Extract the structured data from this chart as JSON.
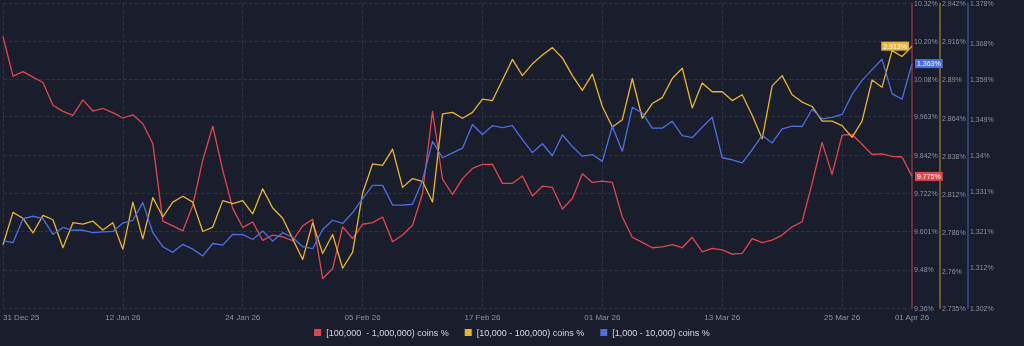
{
  "chart_data": {
    "type": "line",
    "x": [
      "2025-12-31",
      "2026-01-01",
      "2026-01-02",
      "2026-01-03",
      "2026-01-04",
      "2026-01-05",
      "2026-01-06",
      "2026-01-07",
      "2026-01-08",
      "2026-01-09",
      "2026-01-10",
      "2026-01-11",
      "2026-01-12",
      "2026-01-13",
      "2026-01-14",
      "2026-01-15",
      "2026-01-16",
      "2026-01-17",
      "2026-01-18",
      "2026-01-19",
      "2026-01-20",
      "2026-01-21",
      "2026-01-22",
      "2026-01-23",
      "2026-01-24",
      "2026-01-25",
      "2026-01-26",
      "2026-01-27",
      "2026-01-28",
      "2026-01-29",
      "2026-01-30",
      "2026-01-31",
      "2026-02-01",
      "2026-02-02",
      "2026-02-03",
      "2026-02-04",
      "2026-02-05",
      "2026-02-06",
      "2026-02-07",
      "2026-02-08",
      "2026-02-09",
      "2026-02-10",
      "2026-02-11",
      "2026-02-12",
      "2026-02-13",
      "2026-02-14",
      "2026-02-15",
      "2026-02-16",
      "2026-02-17",
      "2026-02-18",
      "2026-02-19",
      "2026-02-20",
      "2026-02-21",
      "2026-02-22",
      "2026-02-23",
      "2026-02-24",
      "2026-02-25",
      "2026-02-26",
      "2026-02-27",
      "2026-02-28",
      "2026-03-01",
      "2026-03-02",
      "2026-03-03",
      "2026-03-04",
      "2026-03-05",
      "2026-03-06",
      "2026-03-07",
      "2026-03-08",
      "2026-03-09",
      "2026-03-10",
      "2026-03-11",
      "2026-03-12",
      "2026-03-13",
      "2026-03-14",
      "2026-03-15",
      "2026-03-16",
      "2026-03-17",
      "2026-03-18",
      "2026-03-19",
      "2026-03-20",
      "2026-03-21",
      "2026-03-22",
      "2026-03-23",
      "2026-03-24",
      "2026-03-25",
      "2026-03-26",
      "2026-03-27",
      "2026-03-28",
      "2026-03-29",
      "2026-03-30",
      "2026-03-31",
      "2026-04-01"
    ],
    "xlim": [
      "2025-12-31",
      "2026-04-01"
    ],
    "xticks": [
      {
        "value": "2025-12-31",
        "label": "31 Dec 25"
      },
      {
        "value": "2026-01-12",
        "label": "12 Jan 26"
      },
      {
        "value": "2026-01-24",
        "label": "24 Jan 26"
      },
      {
        "value": "2026-02-05",
        "label": "05 Feb 26"
      },
      {
        "value": "2026-02-17",
        "label": "17 Feb 26"
      },
      {
        "value": "2026-03-01",
        "label": "01 Mar 26"
      },
      {
        "value": "2026-03-13",
        "label": "13 Mar 26"
      },
      {
        "value": "2026-03-25",
        "label": "25 Mar 26"
      },
      {
        "value": "2026-04-01",
        "label": "01 Apr 26"
      }
    ],
    "ylim": [
      9.36,
      10.32
    ],
    "yticks": [
      {
        "value": 9.36,
        "label": "9.36%"
      },
      {
        "value": 9.48,
        "label": "9.48%"
      },
      {
        "value": 9.601,
        "label": "9.601%"
      },
      {
        "value": 9.722,
        "label": "9.722%"
      },
      {
        "value": 9.842,
        "label": "9.842%"
      },
      {
        "value": 9.963,
        "label": "9.963%"
      },
      {
        "value": 10.08,
        "label": "10.08%"
      },
      {
        "value": 10.2,
        "label": "10.20%"
      },
      {
        "value": 10.32,
        "label": "10.32%"
      }
    ],
    "y2lim": [
      2.735,
      2.942
    ],
    "y2ticks": [
      {
        "value": 2.735,
        "label": "2.735%"
      },
      {
        "value": 2.76,
        "label": "2.76%"
      },
      {
        "value": 2.786,
        "label": "2.786%"
      },
      {
        "value": 2.812,
        "label": "2.812%"
      },
      {
        "value": 2.838,
        "label": "2.838%"
      },
      {
        "value": 2.864,
        "label": "2.864%"
      },
      {
        "value": 2.89,
        "label": "2.89%"
      },
      {
        "value": 2.916,
        "label": "2.916%"
      },
      {
        "value": 2.942,
        "label": "2.942%"
      }
    ],
    "y3lim": [
      1.302,
      1.378
    ],
    "y3ticks": [
      {
        "value": 1.302,
        "label": "1.302%"
      },
      {
        "value": 1.312,
        "label": "1.312%"
      },
      {
        "value": 1.321,
        "label": "1.321%"
      },
      {
        "value": 1.331,
        "label": "1.331%"
      },
      {
        "value": 1.34,
        "label": "1.34%"
      },
      {
        "value": 1.349,
        "label": "1.349%"
      },
      {
        "value": 1.359,
        "label": "1.359%"
      },
      {
        "value": 1.368,
        "label": "1.368%"
      },
      {
        "value": 1.378,
        "label": "1.378%"
      }
    ],
    "grid": true,
    "legend": "bottom",
    "marker": "none",
    "line_style": "solid",
    "series": [
      {
        "name": "[100,000  - 1,000,000) coins %",
        "color": "#e0474c",
        "axis": "y",
        "values": [
          10.216,
          10.091,
          10.105,
          10.088,
          10.071,
          9.999,
          9.98,
          9.967,
          10.016,
          9.981,
          9.989,
          9.976,
          9.959,
          9.969,
          9.941,
          9.878,
          9.634,
          9.619,
          9.603,
          9.684,
          9.826,
          9.933,
          9.794,
          9.674,
          9.614,
          9.631,
          9.573,
          9.59,
          9.584,
          9.572,
          9.619,
          9.64,
          9.453,
          9.484,
          9.616,
          9.579,
          9.624,
          9.629,
          9.647,
          9.569,
          9.59,
          9.621,
          9.721,
          9.98,
          9.766,
          9.718,
          9.768,
          9.8,
          9.813,
          9.813,
          9.753,
          9.753,
          9.776,
          9.713,
          9.744,
          9.74,
          9.672,
          9.705,
          9.783,
          9.756,
          9.76,
          9.756,
          9.647,
          9.583,
          9.567,
          9.55,
          9.553,
          9.56,
          9.55,
          9.583,
          9.537,
          9.548,
          9.543,
          9.53,
          9.532,
          9.579,
          9.566,
          9.574,
          9.59,
          9.616,
          9.632,
          9.753,
          9.882,
          9.781,
          9.905,
          9.907,
          9.876,
          9.844,
          9.846,
          9.838,
          9.836,
          9.775
        ],
        "value_labels": [
          null,
          null,
          null,
          null,
          null,
          null,
          null,
          null,
          null,
          null,
          null,
          null,
          null,
          null,
          null,
          null,
          null,
          null,
          null,
          null,
          null,
          null,
          null,
          null,
          null,
          null,
          null,
          null,
          null,
          null,
          null,
          null,
          null,
          null,
          null,
          null,
          null,
          null,
          null,
          null,
          null,
          null,
          null,
          null,
          null,
          null,
          null,
          null,
          null,
          null,
          null,
          null,
          null,
          null,
          null,
          null,
          null,
          null,
          null,
          null,
          null,
          null,
          null,
          null,
          null,
          null,
          null,
          null,
          null,
          null,
          null,
          null,
          null,
          null,
          null,
          null,
          null,
          null,
          null,
          null,
          null,
          null,
          null,
          null,
          null,
          null,
          null,
          null,
          null,
          null,
          null,
          "9.775%"
        ]
      },
      {
        "name": "[10,000 - 100,000) coins %",
        "color": "#e9b52f",
        "axis": "y2",
        "values": [
          2.778,
          2.8,
          2.796,
          2.786,
          2.798,
          2.795,
          2.776,
          2.793,
          2.792,
          2.794,
          2.788,
          2.793,
          2.775,
          2.807,
          2.782,
          2.81,
          2.797,
          2.807,
          2.811,
          2.807,
          2.787,
          2.79,
          2.808,
          2.806,
          2.808,
          2.799,
          2.816,
          2.803,
          2.796,
          2.782,
          2.768,
          2.793,
          2.772,
          2.785,
          2.762,
          2.773,
          2.813,
          2.833,
          2.832,
          2.843,
          2.817,
          2.823,
          2.821,
          2.807,
          2.867,
          2.868,
          2.864,
          2.868,
          2.877,
          2.876,
          2.89,
          2.904,
          2.893,
          2.901,
          2.907,
          2.912,
          2.905,
          2.893,
          2.883,
          2.894,
          2.872,
          2.858,
          2.863,
          2.891,
          2.864,
          2.874,
          2.878,
          2.891,
          2.898,
          2.871,
          2.888,
          2.882,
          2.882,
          2.876,
          2.88,
          2.866,
          2.85,
          2.886,
          2.893,
          2.88,
          2.875,
          2.872,
          2.862,
          2.862,
          2.859,
          2.851,
          2.862,
          2.89,
          2.885,
          2.91,
          2.906,
          2.913
        ],
        "value_labels": [
          null,
          null,
          null,
          null,
          null,
          null,
          null,
          null,
          null,
          null,
          null,
          null,
          null,
          null,
          null,
          null,
          null,
          null,
          null,
          null,
          null,
          null,
          null,
          null,
          null,
          null,
          null,
          null,
          null,
          null,
          null,
          null,
          null,
          null,
          null,
          null,
          null,
          null,
          null,
          null,
          null,
          null,
          null,
          null,
          null,
          null,
          null,
          null,
          null,
          null,
          null,
          null,
          null,
          null,
          null,
          null,
          null,
          null,
          null,
          null,
          null,
          null,
          null,
          null,
          null,
          null,
          null,
          null,
          null,
          null,
          null,
          null,
          null,
          null,
          null,
          null,
          null,
          null,
          null,
          null,
          null,
          null,
          null,
          null,
          null,
          null,
          null,
          null,
          null,
          null,
          null,
          "2.913%"
        ]
      },
      {
        "name": "[1,000 - 10,000) coins %",
        "color": "#4b6fe2",
        "axis": "y3",
        "values": [
          1.3188,
          1.3183,
          1.3243,
          1.3249,
          1.3243,
          1.3204,
          1.3221,
          1.3214,
          1.3214,
          1.3208,
          1.321,
          1.3211,
          1.3232,
          1.3239,
          1.3283,
          1.3208,
          1.3173,
          1.3159,
          1.3179,
          1.3167,
          1.315,
          1.3181,
          1.3177,
          1.3204,
          1.3203,
          1.3191,
          1.3212,
          1.3187,
          1.3208,
          1.3196,
          1.3173,
          1.3168,
          1.3216,
          1.3239,
          1.3231,
          1.3258,
          1.3293,
          1.3326,
          1.3326,
          1.3277,
          1.3277,
          1.3279,
          1.3339,
          1.3436,
          1.3395,
          1.3407,
          1.3419,
          1.3478,
          1.3453,
          1.3475,
          1.347,
          1.3475,
          1.344,
          1.3408,
          1.343,
          1.34,
          1.3452,
          1.3423,
          1.3399,
          1.3403,
          1.3386,
          1.3473,
          1.3411,
          1.3521,
          1.3507,
          1.3469,
          1.3469,
          1.3486,
          1.345,
          1.3445,
          1.3471,
          1.3496,
          1.3395,
          1.339,
          1.3382,
          1.3415,
          1.3451,
          1.3432,
          1.3467,
          1.3474,
          1.3473,
          1.3516,
          1.3492,
          1.3496,
          1.3503,
          1.3553,
          1.3588,
          1.3615,
          1.3641,
          1.3555,
          1.3541,
          1.363
        ],
        "value_labels": [
          null,
          null,
          null,
          null,
          null,
          null,
          null,
          null,
          null,
          null,
          null,
          null,
          null,
          null,
          null,
          null,
          null,
          null,
          null,
          null,
          null,
          null,
          null,
          null,
          null,
          null,
          null,
          null,
          null,
          null,
          null,
          null,
          null,
          null,
          null,
          null,
          null,
          null,
          null,
          null,
          null,
          null,
          null,
          null,
          null,
          null,
          null,
          null,
          null,
          null,
          null,
          null,
          null,
          null,
          null,
          null,
          null,
          null,
          null,
          null,
          null,
          null,
          null,
          null,
          null,
          null,
          null,
          null,
          null,
          null,
          null,
          null,
          null,
          null,
          null,
          null,
          null,
          null,
          null,
          null,
          null,
          null,
          null,
          null,
          null,
          null,
          null,
          null,
          null,
          null,
          null,
          "1.363%"
        ]
      }
    ]
  }
}
